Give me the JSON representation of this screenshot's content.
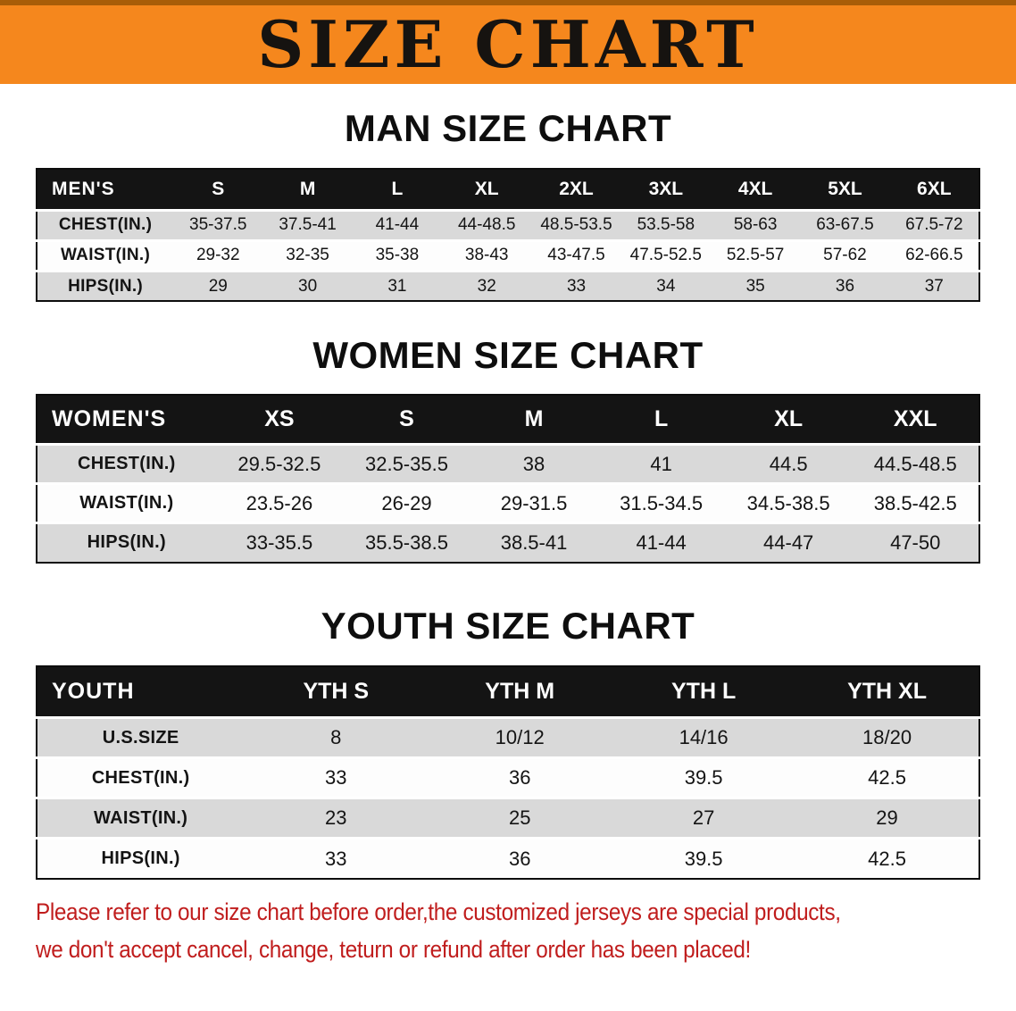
{
  "banner": {
    "title": "SIZE CHART",
    "bg_color": "#F5871D"
  },
  "sections": [
    {
      "heading": "MAN SIZE CHART",
      "table": {
        "group_label": "MEN'S",
        "columns": [
          "S",
          "M",
          "L",
          "XL",
          "2XL",
          "3XL",
          "4XL",
          "5XL",
          "6XL"
        ],
        "rows": [
          {
            "label": "CHEST(IN.)",
            "values": [
              "35-37.5",
              "37.5-41",
              "41-44",
              "44-48.5",
              "48.5-53.5",
              "53.5-58",
              "58-63",
              "63-67.5",
              "67.5-72"
            ]
          },
          {
            "label": "WAIST(IN.)",
            "values": [
              "29-32",
              "32-35",
              "35-38",
              "38-43",
              "43-47.5",
              "47.5-52.5",
              "52.5-57",
              "57-62",
              "62-66.5"
            ]
          },
          {
            "label": "HIPS(IN.)",
            "values": [
              "29",
              "30",
              "31",
              "32",
              "33",
              "34",
              "35",
              "36",
              "37"
            ]
          }
        ]
      }
    },
    {
      "heading": "WOMEN SIZE CHART",
      "table": {
        "group_label": "WOMEN'S",
        "columns": [
          "XS",
          "S",
          "M",
          "L",
          "XL",
          "XXL"
        ],
        "rows": [
          {
            "label": "CHEST(IN.)",
            "values": [
              "29.5-32.5",
              "32.5-35.5",
              "38",
              "41",
              "44.5",
              "44.5-48.5"
            ]
          },
          {
            "label": "WAIST(IN.)",
            "values": [
              "23.5-26",
              "26-29",
              "29-31.5",
              "31.5-34.5",
              "34.5-38.5",
              "38.5-42.5"
            ]
          },
          {
            "label": "HIPS(IN.)",
            "values": [
              "33-35.5",
              "35.5-38.5",
              "38.5-41",
              "41-44",
              "44-47",
              "47-50"
            ]
          }
        ]
      }
    },
    {
      "heading": "YOUTH SIZE CHART",
      "table": {
        "group_label": "YOUTH",
        "columns": [
          "YTH S",
          "YTH M",
          "YTH L",
          "YTH XL"
        ],
        "rows": [
          {
            "label": "U.S.SIZE",
            "values": [
              "8",
              "10/12",
              "14/16",
              "18/20"
            ]
          },
          {
            "label": "CHEST(IN.)",
            "values": [
              "33",
              "36",
              "39.5",
              "42.5"
            ]
          },
          {
            "label": "WAIST(IN.)",
            "values": [
              "23",
              "25",
              "27",
              "29"
            ]
          },
          {
            "label": "HIPS(IN.)",
            "values": [
              "33",
              "36",
              "39.5",
              "42.5"
            ]
          }
        ]
      }
    }
  ],
  "disclaimer": {
    "line1": "Please refer to our size chart before order,the customized jerseys are special products,",
    "line2": "we don't accept cancel, change, teturn or refund after order has been placed!",
    "color": "#C01D1D"
  }
}
